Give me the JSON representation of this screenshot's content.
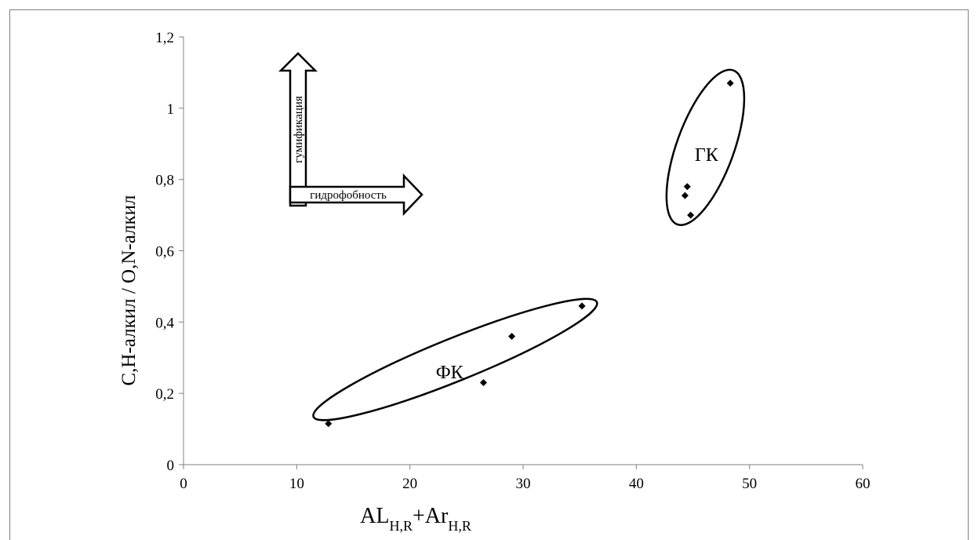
{
  "chart_data": {
    "type": "scatter",
    "xlabel": {
      "base1": "AL",
      "sub1": "H,R",
      "base2": "+Ar",
      "sub2": "H,R"
    },
    "ylabel": "C,H-алкил / O,N-алкил",
    "xlim": [
      0,
      60
    ],
    "ylim": [
      0,
      1.2
    ],
    "x_ticks": [
      "0",
      "10",
      "20",
      "30",
      "40",
      "50",
      "60"
    ],
    "y_ticks": [
      "0",
      "0,2",
      "0,4",
      "0,6",
      "0,8",
      "1",
      "1,2"
    ],
    "grid": false,
    "series": [
      {
        "group": "ГК",
        "points": [
          {
            "x": 48.3,
            "y": 1.07
          },
          {
            "x": 44.5,
            "y": 0.78
          },
          {
            "x": 44.3,
            "y": 0.755
          },
          {
            "x": 44.8,
            "y": 0.7
          }
        ]
      },
      {
        "group": "ФК",
        "points": [
          {
            "x": 35.2,
            "y": 0.445
          },
          {
            "x": 29.0,
            "y": 0.36
          },
          {
            "x": 26.5,
            "y": 0.23
          },
          {
            "x": 12.8,
            "y": 0.115
          }
        ]
      }
    ],
    "groups": [
      {
        "label": "ГК",
        "label_pos": {
          "x": 46.2,
          "y": 0.87
        },
        "ellipse": {
          "cx": 46.1,
          "cy": 0.89,
          "rx": 2.3,
          "ry": 0.23,
          "angle": 20
        }
      },
      {
        "label": "ФК",
        "label_pos": {
          "x": 23.5,
          "y": 0.26
        },
        "ellipse": {
          "cx": 24.0,
          "cy": 0.295,
          "rx": 13.5,
          "ry": 0.12,
          "angle": -22
        }
      }
    ],
    "annotations": {
      "arrow_up_label": "гумификация",
      "arrow_right_label": "гидрофобность"
    }
  }
}
